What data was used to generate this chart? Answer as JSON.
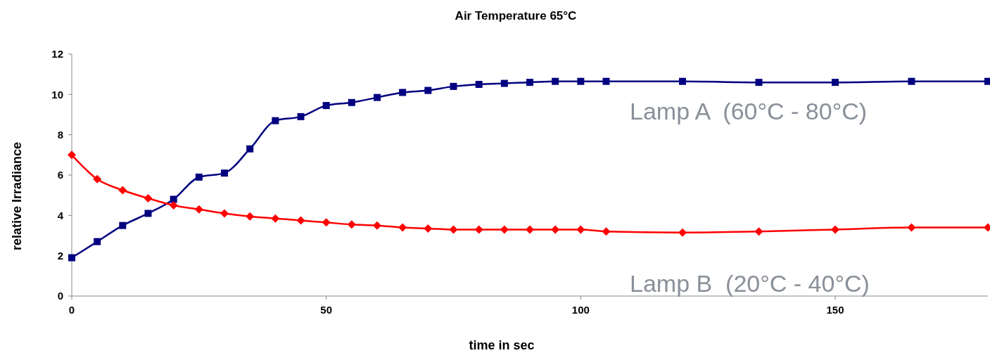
{
  "chart_data": {
    "type": "line",
    "title": "Air Temperature 65°C",
    "xlabel": "time in sec",
    "ylabel": "relative Irradiance",
    "xlim": [
      0,
      180
    ],
    "xticks": [
      0,
      50,
      100,
      150
    ],
    "ylim": [
      0,
      12
    ],
    "yticks": [
      0,
      2,
      4,
      6,
      8,
      10,
      12
    ],
    "series": [
      {
        "color": "#000080",
        "marker": "square",
        "x": [
          0,
          5,
          10,
          15,
          20,
          25,
          30,
          35,
          40,
          45,
          50,
          55,
          60,
          65,
          70,
          75,
          80,
          85,
          90,
          95,
          100,
          105,
          120,
          135,
          150,
          165,
          180
        ],
        "values": [
          1.9,
          2.7,
          3.5,
          4.1,
          4.8,
          5.9,
          6.1,
          7.3,
          8.7,
          8.9,
          9.45,
          9.6,
          9.85,
          10.1,
          10.2,
          10.4,
          10.5,
          10.55,
          10.6,
          10.65,
          10.65,
          10.65,
          10.65,
          10.6,
          10.6,
          10.65,
          10.65
        ]
      },
      {
        "color": "#ff0000",
        "marker": "diamond",
        "x": [
          0,
          5,
          10,
          15,
          20,
          25,
          30,
          35,
          40,
          45,
          50,
          55,
          60,
          65,
          70,
          75,
          80,
          85,
          90,
          95,
          100,
          105,
          120,
          135,
          150,
          165,
          180
        ],
        "values": [
          7.0,
          5.8,
          5.25,
          4.85,
          4.5,
          4.3,
          4.1,
          3.95,
          3.85,
          3.75,
          3.65,
          3.55,
          3.5,
          3.4,
          3.35,
          3.3,
          3.3,
          3.3,
          3.3,
          3.3,
          3.3,
          3.2,
          3.15,
          3.2,
          3.3,
          3.4,
          3.4
        ]
      }
    ],
    "annotations": [
      "Lamp A  (60°C - 80°C)",
      "Lamp B  (20°C - 40°C)"
    ]
  }
}
